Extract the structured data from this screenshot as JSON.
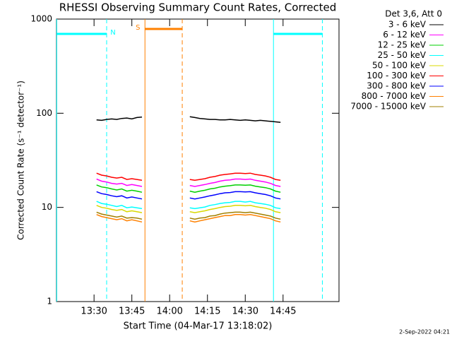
{
  "chart_data": {
    "type": "line",
    "title": "RHESSI Observing Summary Count Rates, Corrected",
    "x_label": "Start Time (04-Mar-17 13:18:02)",
    "y_label": "Corrected Count Rate (s⁻¹ detector⁻¹)",
    "legend_title": "Det 3,6, Att 0",
    "footer": "2-Sep-2022 04:21",
    "log_y": true,
    "xlim": [
      795.1,
      907.2
    ],
    "xticks": [
      {
        "value": 810,
        "label": "13:30"
      },
      {
        "value": 825,
        "label": "13:45"
      },
      {
        "value": 840,
        "label": "14:00"
      },
      {
        "value": 855,
        "label": "14:15"
      },
      {
        "value": 870,
        "label": "14:30"
      },
      {
        "value": 885,
        "label": "14:45"
      }
    ],
    "ylim": [
      1,
      1000
    ],
    "yticks": [
      1,
      10,
      100,
      1000
    ],
    "annotations": [
      {
        "label": "N",
        "color": "#00ffff",
        "intervals": [
          [
            795.2,
            815
          ],
          [
            881.2,
            900.6
          ]
        ]
      },
      {
        "label": "S",
        "color": "#ff8000",
        "intervals": [
          [
            830.2,
            845
          ]
        ]
      }
    ],
    "x": [
      811,
      813,
      815,
      817,
      819,
      821,
      823,
      825,
      827,
      829,
      838,
      848,
      850,
      852,
      854,
      856,
      858,
      860,
      862,
      864,
      866,
      868,
      870,
      872,
      874,
      876,
      878,
      880,
      882,
      884
    ],
    "series": [
      {
        "name": "3 - 6 keV",
        "color": "#000000",
        "values": [
          85,
          84,
          86,
          87,
          86,
          88,
          89,
          87,
          90,
          91,
          null,
          92,
          90,
          88,
          87,
          86,
          86,
          85,
          85,
          86,
          85,
          84,
          85,
          84,
          83,
          84,
          83,
          82,
          81,
          80
        ]
      },
      {
        "name": "6 - 12 keV",
        "color": "#ff00ff",
        "values": [
          20,
          19,
          18.6,
          18,
          17.7,
          18,
          17.1,
          17.5,
          17.1,
          16.7,
          null,
          17.1,
          16.7,
          17.1,
          17.5,
          18,
          18.4,
          19,
          19.4,
          19.6,
          20,
          20,
          19.8,
          20,
          19.4,
          19,
          18.6,
          18,
          17.1,
          16.7
        ]
      },
      {
        "name": "12 - 25 keV",
        "color": "#00d000",
        "values": [
          17.3,
          16.5,
          16.2,
          15.7,
          15.3,
          15.7,
          14.9,
          15.2,
          14.9,
          14.5,
          null,
          14.9,
          14.5,
          14.9,
          15.2,
          15.7,
          16,
          16.5,
          16.8,
          17,
          17.3,
          17.3,
          17.2,
          17.3,
          16.8,
          16.5,
          16.2,
          15.7,
          14.9,
          14.5
        ]
      },
      {
        "name": "25 - 50 keV",
        "color": "#00ffff",
        "values": [
          11.6,
          11,
          10.8,
          10.5,
          10.2,
          10.5,
          9.9,
          10.1,
          9.9,
          9.7,
          null,
          9.9,
          9.7,
          9.9,
          10.1,
          10.5,
          10.7,
          11,
          11.2,
          11.3,
          11.6,
          11.6,
          11.4,
          11.6,
          11.2,
          11,
          10.8,
          10.5,
          9.9,
          9.7
        ]
      },
      {
        "name": "50 - 100 keV",
        "color": "#d8d800",
        "values": [
          10.5,
          10,
          9.8,
          9.5,
          9.3,
          9.5,
          9,
          9.2,
          9,
          8.8,
          null,
          9,
          8.8,
          9,
          9.2,
          9.5,
          9.7,
          10,
          10.2,
          10.3,
          10.5,
          10.5,
          10.4,
          10.5,
          10.2,
          10,
          9.8,
          9.5,
          9,
          8.8
        ]
      },
      {
        "name": "100 - 300 keV",
        "color": "#ff0000",
        "values": [
          23.1,
          22,
          21.6,
          20.9,
          20.5,
          20.9,
          19.8,
          20.2,
          19.8,
          19.4,
          null,
          19.8,
          19.4,
          19.8,
          20.2,
          20.9,
          21.3,
          22,
          22.4,
          22.7,
          23.1,
          23.1,
          22.9,
          23.1,
          22.4,
          22,
          21.6,
          20.9,
          19.8,
          19.4
        ]
      },
      {
        "name": "300 - 800 keV",
        "color": "#0000ff",
        "values": [
          14.7,
          14,
          13.7,
          13.3,
          13,
          13.3,
          12.6,
          12.9,
          12.6,
          12.3,
          null,
          12.6,
          12.3,
          12.6,
          12.9,
          13.3,
          13.6,
          14,
          14.3,
          14.4,
          14.7,
          14.7,
          14.6,
          14.7,
          14.3,
          14,
          13.7,
          13.3,
          12.6,
          12.3
        ]
      },
      {
        "name": "800 - 7000 keV",
        "color": "#ff8000",
        "values": [
          8.4,
          8,
          7.8,
          7.6,
          7.4,
          7.6,
          7.2,
          7.4,
          7.2,
          7,
          null,
          7.2,
          7,
          7.2,
          7.4,
          7.6,
          7.8,
          8,
          8.2,
          8.2,
          8.4,
          8.4,
          8.3,
          8.4,
          8.2,
          8,
          7.8,
          7.6,
          7.2,
          7
        ]
      },
      {
        "name": "7000 - 15000 keV",
        "color": "#a08000",
        "values": [
          8.9,
          8.5,
          8.3,
          8.1,
          7.9,
          8.1,
          7.7,
          7.8,
          7.7,
          7.5,
          null,
          7.7,
          7.5,
          7.7,
          7.8,
          8.1,
          8.2,
          8.5,
          8.7,
          8.8,
          8.9,
          8.9,
          8.8,
          8.9,
          8.7,
          8.5,
          8.3,
          8.1,
          7.7,
          7.5
        ]
      }
    ]
  }
}
